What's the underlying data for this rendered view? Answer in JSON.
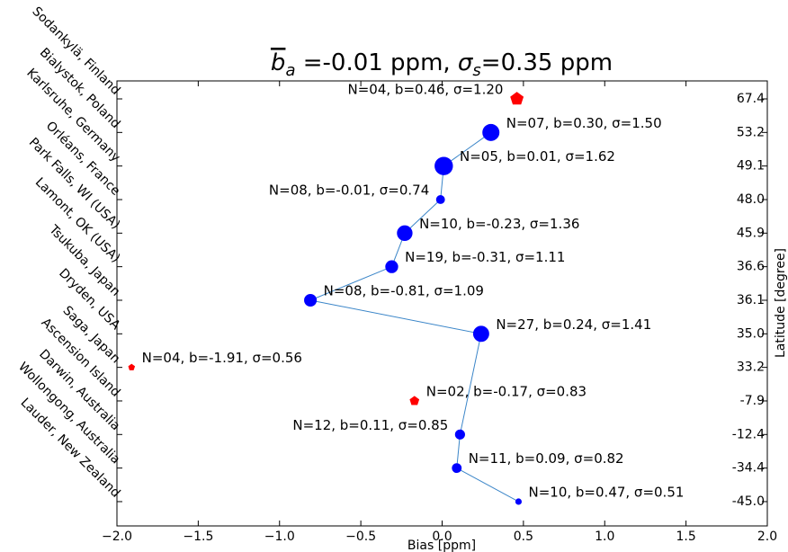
{
  "chart_data": {
    "type": "scatter",
    "title_parts": [
      "b",
      "a",
      " =-0.01 ppm, ",
      "σ",
      "s",
      "=0.35 ppm"
    ],
    "xlabel": "Bias [ppm]",
    "y2label": "Latitude [degree]",
    "categories": [
      "Sodankylä, Finland",
      "Bialystok, Poland",
      "Karlsruhe, Germany",
      "Orléans, France",
      "Park Falls, WI (USA)",
      "Lamont, OK (USA)",
      "Tsukuba, Japan",
      "Dryden, USA",
      "Saga, Japan",
      "Ascension Island",
      "Darwin, Australia",
      "Wollongong, Australia",
      "Lauder, New Zealand"
    ],
    "latitudes": [
      67.4,
      53.2,
      49.1,
      {
        "value": 48,
        "label": "48.0"
      },
      45.9,
      36.6,
      36.1,
      {
        "value": 35,
        "label": "35.0"
      },
      33.2,
      -7.9,
      -12.4,
      -34.4,
      {
        "value": -45,
        "label": "-45.0"
      }
    ],
    "values": [
      0.46,
      0.3,
      0.01,
      -0.01,
      -0.23,
      -0.31,
      -0.81,
      0.24,
      -1.91,
      -0.17,
      0.11,
      0.09,
      0.47
    ],
    "sigma": [
      1.2,
      1.5,
      1.62,
      0.74,
      1.36,
      1.11,
      1.09,
      1.41,
      0.56,
      0.83,
      0.85,
      0.82,
      0.51
    ],
    "value_labels": [
      "N=04, b=0.46, σ=1.20",
      "N=07, b=0.30, σ=1.50",
      "N=05, b=0.01, σ=1.62",
      "N=08, b=-0.01, σ=0.74",
      "N=10, b=-0.23, σ=1.36",
      "N=19, b=-0.31, σ=1.11",
      "N=08, b=-0.81, σ=1.09",
      "N=27, b=0.24, σ=1.41",
      "N=04, b=-1.91, σ=0.56",
      "N=02, b=-0.17, σ=0.83",
      "N=12, b=0.11, σ=0.85",
      "N=11, b=0.09, σ=0.82",
      "N=10, b=0.47, σ=0.51"
    ],
    "markers": [
      "pentagon",
      "circle",
      "circle",
      "circle",
      "circle",
      "circle",
      "circle",
      "circle",
      "pentagon",
      "pentagon",
      "circle",
      "circle",
      "circle"
    ],
    "circle_color": "#0000ff",
    "pentagon_color": "#ff0000",
    "line_color": "#3a85c8",
    "xlim": [
      -2,
      2
    ],
    "xticks": [
      {
        "value": -2,
        "label": "−2.0"
      },
      {
        "value": -1.5,
        "label": "−1.5"
      },
      {
        "value": -1,
        "label": "−1.0"
      },
      {
        "value": -0.5,
        "label": "−0.5"
      },
      {
        "value": 0,
        "label": "0.0"
      },
      {
        "value": 0.5,
        "label": "0.5"
      },
      {
        "value": 1,
        "label": "1.0"
      },
      {
        "value": 1.5,
        "label": "1.5"
      },
      {
        "value": 2,
        "label": "2.0"
      }
    ]
  }
}
